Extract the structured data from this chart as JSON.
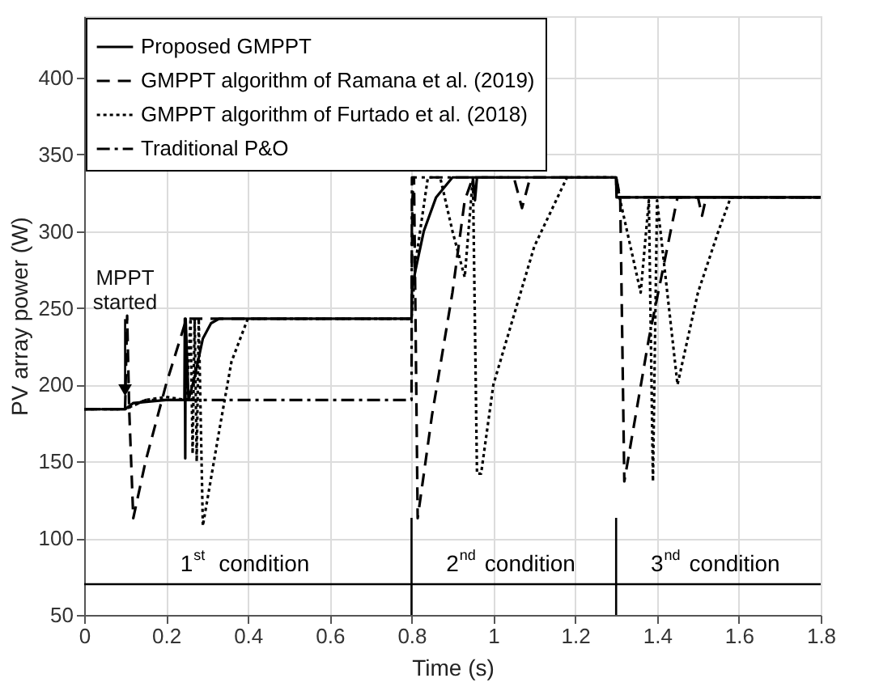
{
  "chart_data": {
    "type": "line",
    "xlabel": "Time (s)",
    "ylabel": "PV array power (W)",
    "xlim": [
      0,
      1.8
    ],
    "xticks": [
      0,
      0.2,
      0.4,
      0.6,
      0.8,
      1,
      1.2,
      1.4,
      1.6,
      1.8
    ],
    "ylim": [
      50,
      440
    ],
    "yticks": [
      50,
      100,
      150,
      200,
      250,
      300,
      350,
      400
    ],
    "grid": true,
    "legend": "top left",
    "marker": "none",
    "series": [
      {
        "name": "Proposed GMPPT",
        "color": "#000000",
        "line_style": "solid",
        "x": [
          0,
          0.1,
          0.12,
          0.2,
          0.245,
          0.246,
          0.247,
          0.248,
          0.255,
          0.27,
          0.29,
          0.31,
          0.33,
          0.8,
          0.801,
          0.81,
          0.83,
          0.86,
          0.9,
          0.93,
          0.95,
          0.955,
          0.96,
          0.97,
          1.0,
          1.3,
          1.301,
          1.8
        ],
        "values": [
          184,
          184,
          188,
          190,
          190,
          243,
          152,
          243,
          190,
          205,
          230,
          240,
          243,
          243,
          262,
          275,
          300,
          322,
          335,
          335,
          335,
          320,
          335,
          335,
          335,
          335,
          322,
          322
        ]
      },
      {
        "name": "GMPPT algorithm of Ramana et al. (2019)",
        "color": "#000000",
        "line_style": "dashed",
        "x": [
          0,
          0.1,
          0.105,
          0.11,
          0.12,
          0.15,
          0.2,
          0.25,
          0.26,
          0.8,
          0.802,
          0.806,
          0.815,
          0.85,
          0.9,
          0.93,
          0.95,
          1.0,
          1.05,
          1.07,
          1.09,
          1.3,
          1.31,
          1.32,
          1.38,
          1.45,
          1.5,
          1.51,
          1.52,
          1.8
        ],
        "values": [
          184,
          184,
          245,
          184,
          113,
          150,
          200,
          243,
          243,
          243,
          320,
          335,
          113,
          180,
          260,
          320,
          335,
          335,
          335,
          315,
          335,
          335,
          322,
          137,
          230,
          322,
          322,
          310,
          322,
          322
        ]
      },
      {
        "name": "GMPPT algorithm of Furtado et al. (2018)",
        "color": "#000000",
        "line_style": "dotted",
        "x": [
          0,
          0.1,
          0.15,
          0.2,
          0.25,
          0.26,
          0.265,
          0.27,
          0.275,
          0.28,
          0.29,
          0.33,
          0.36,
          0.4,
          0.8,
          0.81,
          0.84,
          0.87,
          0.9,
          0.93,
          0.95,
          0.96,
          0.97,
          1.0,
          1.1,
          1.18,
          1.2,
          1.3,
          1.31,
          1.36,
          1.38,
          1.39,
          1.4,
          1.45,
          1.5,
          1.55,
          1.58,
          1.8
        ],
        "values": [
          184,
          184,
          190,
          192,
          190,
          243,
          155,
          243,
          150,
          243,
          108,
          170,
          215,
          243,
          243,
          280,
          335,
          335,
          300,
          270,
          335,
          142,
          142,
          200,
          290,
          335,
          335,
          335,
          320,
          260,
          320,
          137,
          320,
          200,
          260,
          300,
          322,
          322
        ]
      },
      {
        "name": "Traditional P&O",
        "color": "#000000",
        "line_style": "dashdot",
        "x": [
          0,
          0.1,
          0.15,
          0.8,
          0.801,
          1.3,
          1.301,
          1.8
        ],
        "values": [
          184,
          184,
          190,
          190,
          335,
          335,
          322,
          322
        ]
      }
    ],
    "annotations": [
      {
        "text": "MPPT started",
        "x": 0.1,
        "y": 190
      },
      {
        "text": "1$^{st}$ condition",
        "x": 0.4,
        "y": 70
      },
      {
        "text": "2$^{nd}$ condition",
        "x": 1.05,
        "y": 70
      },
      {
        "text": "3$^{nd}$ condition",
        "x": 1.55,
        "y": 70
      }
    ],
    "ref_lines": [
      {
        "axis": "y",
        "value": 70
      },
      {
        "axis": "x",
        "value": 0.8
      },
      {
        "axis": "x",
        "value": 1.3
      }
    ]
  }
}
